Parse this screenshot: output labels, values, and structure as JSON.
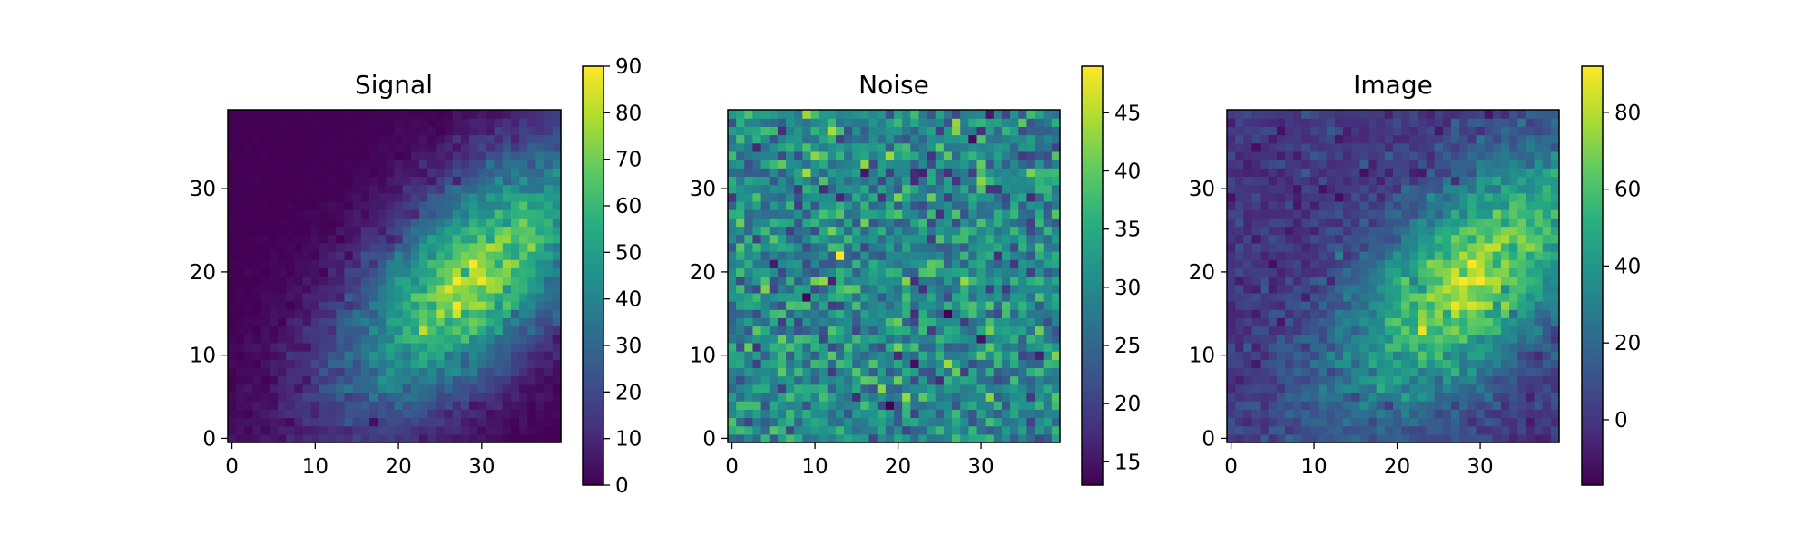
{
  "chart_data": [
    {
      "type": "heatmap",
      "title": "Signal",
      "grid_size": [
        40,
        40
      ],
      "x_ticks": [
        "0",
        "10",
        "20",
        "30"
      ],
      "y_ticks": [
        "0",
        "10",
        "20",
        "30"
      ],
      "x_range": [
        0,
        39
      ],
      "y_range": [
        0,
        39
      ],
      "origin": "lower",
      "colormap": "viridis",
      "color_range": [
        0,
        90
      ],
      "colorbar_ticks": [
        "0",
        "10",
        "20",
        "30",
        "40",
        "50",
        "60",
        "70",
        "80",
        "90"
      ],
      "pattern": "2D gaussian blob centered near (x=29, y=19), elongated along the diagonal, peak about 90; near 0 in the upper-left",
      "peak_value": 90
    },
    {
      "type": "heatmap",
      "title": "Noise",
      "grid_size": [
        40,
        40
      ],
      "x_ticks": [
        "0",
        "10",
        "20",
        "30"
      ],
      "y_ticks": [
        "0",
        "10",
        "20",
        "30"
      ],
      "x_range": [
        0,
        39
      ],
      "y_range": [
        0,
        39
      ],
      "origin": "lower",
      "colormap": "viridis",
      "color_range": [
        13,
        49
      ],
      "colorbar_ticks": [
        "15",
        "20",
        "25",
        "30",
        "35",
        "40",
        "45"
      ],
      "pattern": "random noise with mean about 30, range about 13 to 49"
    },
    {
      "type": "heatmap",
      "title": "Image",
      "grid_size": [
        40,
        40
      ],
      "x_ticks": [
        "0",
        "10",
        "20",
        "30"
      ],
      "y_ticks": [
        "0",
        "10",
        "20",
        "30"
      ],
      "x_range": [
        0,
        39
      ],
      "y_range": [
        0,
        39
      ],
      "origin": "lower",
      "colormap": "viridis",
      "color_range": [
        -17,
        92
      ],
      "colorbar_ticks": [
        "0",
        "20",
        "40",
        "60",
        "80"
      ],
      "pattern": "Signal plus Noise minus about 30: blob near (x=29, y=19) on a noisy background around 0"
    }
  ]
}
